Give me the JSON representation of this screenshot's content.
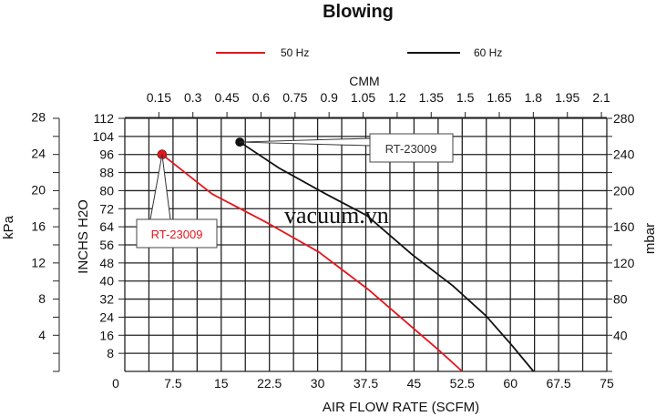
{
  "chart_data": {
    "type": "line",
    "title": "Blowing",
    "xlabel": "AIR FLOW RATE (SCFM)",
    "x2label": "CMM",
    "ylabel": "INCHS H2O",
    "ylabel_left_outer": "kPa",
    "ylabel_right": "mbar",
    "xlim": [
      0,
      75
    ],
    "ylim": [
      0,
      112
    ],
    "grid": true,
    "legend_position": "top",
    "x_ticks": [
      "0",
      "7.5",
      "15",
      "22.5",
      "30",
      "37.5",
      "45",
      "52.5",
      "60",
      "67.5",
      "75"
    ],
    "x2_ticks": [
      "0.15",
      "0.3",
      "0.45",
      "0.6",
      "0.75",
      "0.9",
      "1.05",
      "1.2",
      "1.35",
      "1.5",
      "1.65",
      "1.8",
      "1.95",
      "2.1"
    ],
    "y_ticks": [
      "8",
      "16",
      "24",
      "32",
      "40",
      "48",
      "56",
      "64",
      "72",
      "80",
      "88",
      "96",
      "104",
      "112"
    ],
    "kpa_ticks": [
      "4",
      "8",
      "12",
      "16",
      "20",
      "24",
      "28"
    ],
    "mbar_ticks": [
      "40",
      "80",
      "120",
      "160",
      "200",
      "240",
      "280"
    ],
    "series": [
      {
        "name": "50 Hz",
        "color": "#e8141b",
        "x": [
          5.8,
          13.6,
          22,
          30.2,
          38,
          44.8,
          48.9,
          52.5
        ],
        "y": [
          96,
          78.5,
          66,
          52.8,
          36,
          19.3,
          9.3,
          0
        ]
      },
      {
        "name": "60 Hz",
        "color": "#111111",
        "x": [
          17.9,
          24,
          31.3,
          37.7,
          44.8,
          51,
          56.2,
          60.3,
          63.6
        ],
        "y": [
          101.5,
          90,
          78.5,
          68.9,
          51.5,
          38,
          24.6,
          11.3,
          0
        ]
      }
    ],
    "annotations": [
      {
        "text": "RT-23009",
        "series": "50 Hz",
        "color": "#e8141b"
      },
      {
        "text": "RT-23009",
        "series": "60 Hz",
        "color": "#333333"
      }
    ]
  },
  "watermark": "vacuum.vn"
}
